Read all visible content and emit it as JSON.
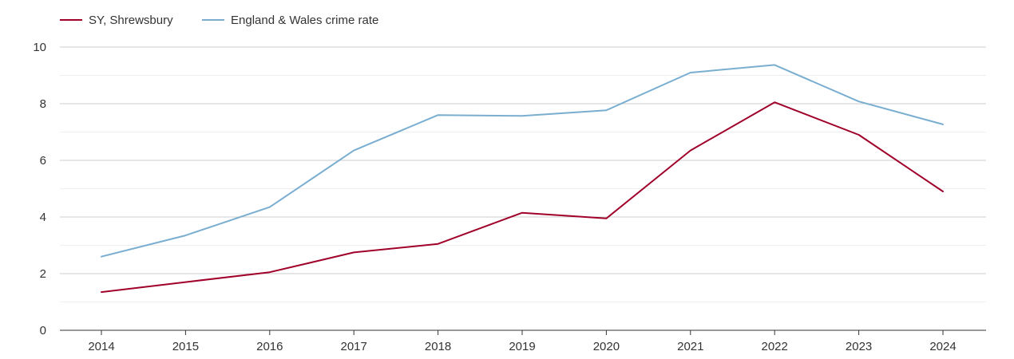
{
  "chart_data": {
    "type": "line",
    "x": [
      "2014",
      "2015",
      "2016",
      "2017",
      "2018",
      "2019",
      "2020",
      "2021",
      "2022",
      "2023",
      "2024"
    ],
    "ylim": [
      0,
      10
    ],
    "yticks": [
      0,
      2,
      4,
      6,
      8,
      10
    ],
    "grid": true,
    "legend_position": "top-left",
    "series": [
      {
        "name": "SY, Shrewsbury",
        "color": "#a0002a",
        "values": [
          1.35,
          1.7,
          2.05,
          2.75,
          3.05,
          4.15,
          3.95,
          6.35,
          8.05,
          6.9,
          4.9
        ]
      },
      {
        "name": "England & Wales crime rate",
        "color": "#7aaed0",
        "values": [
          2.6,
          3.35,
          4.35,
          6.35,
          7.6,
          7.57,
          7.77,
          9.1,
          9.37,
          8.08,
          7.27
        ]
      }
    ]
  }
}
